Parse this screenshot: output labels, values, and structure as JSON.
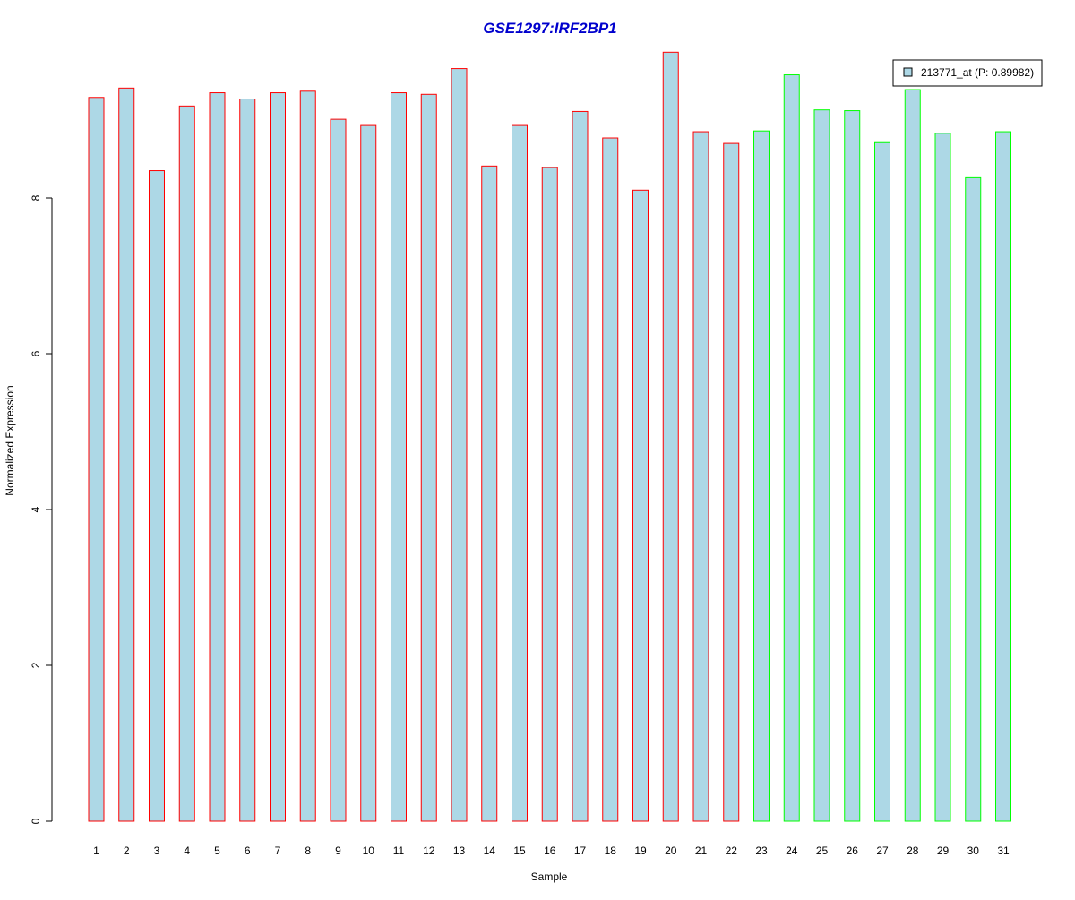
{
  "chart_data": {
    "type": "bar",
    "title": "GSE1297:IRF2BP1",
    "xlabel": "Sample",
    "ylabel": "Normalized Expression",
    "categories": [
      "1",
      "2",
      "3",
      "4",
      "5",
      "6",
      "7",
      "8",
      "9",
      "10",
      "11",
      "12",
      "13",
      "14",
      "15",
      "16",
      "17",
      "18",
      "19",
      "20",
      "21",
      "22",
      "23",
      "24",
      "25",
      "26",
      "27",
      "28",
      "29",
      "30",
      "31"
    ],
    "series": [
      {
        "name": "213771_at (P: 0.89982)",
        "values": [
          9.29,
          9.41,
          8.35,
          9.18,
          9.35,
          9.27,
          9.35,
          9.37,
          9.01,
          8.93,
          9.35,
          9.33,
          9.66,
          8.41,
          8.93,
          8.39,
          9.11,
          8.77,
          8.1,
          9.87,
          8.85,
          8.7,
          8.86,
          9.58,
          9.13,
          9.12,
          8.71,
          9.39,
          8.83,
          8.26,
          8.85
        ]
      }
    ],
    "bar_group_border": [
      "red",
      "red",
      "red",
      "red",
      "red",
      "red",
      "red",
      "red",
      "red",
      "red",
      "red",
      "red",
      "red",
      "red",
      "red",
      "red",
      "red",
      "red",
      "red",
      "red",
      "red",
      "red",
      "green",
      "green",
      "green",
      "green",
      "green",
      "green",
      "green",
      "green",
      "green"
    ],
    "yticks": [
      "0",
      "2",
      "4",
      "6",
      "8"
    ],
    "ylim": [
      0,
      9.87
    ],
    "grid": false,
    "legend_position": "top-right",
    "colors": {
      "bar_fill": "#add8e6",
      "border_red": "#ff0000",
      "border_green": "#00ff00",
      "title": "#0000cd",
      "axis": "#000000"
    }
  }
}
